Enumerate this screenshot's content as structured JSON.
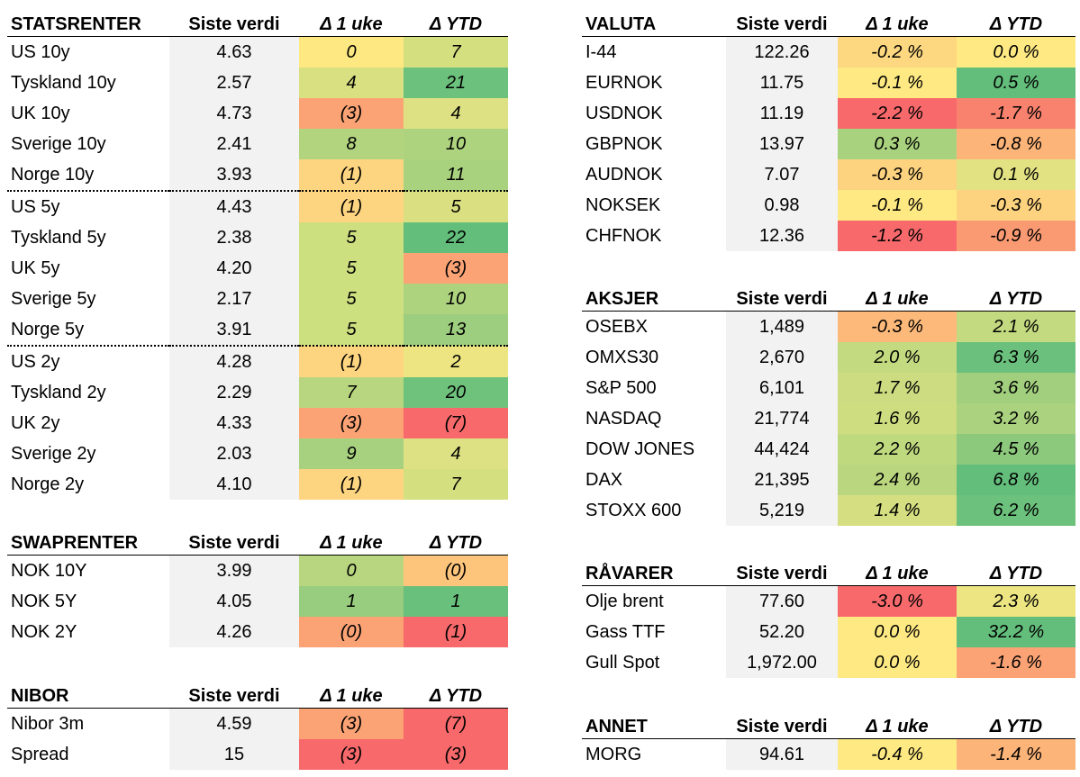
{
  "tables": [
    {
      "id": "statsrenter",
      "title": "STATSRENTER",
      "col_value": "Siste verdi",
      "col_week": "Δ 1 uke",
      "col_ytd": "Δ YTD",
      "rows": [
        {
          "name": "US 10y",
          "value": "4.63",
          "week": "0",
          "ytd": "7",
          "week_color": "#fde882",
          "ytd_color": "#d4df80"
        },
        {
          "name": "Tyskland 10y",
          "value": "2.57",
          "week": "4",
          "ytd": "21",
          "week_color": "#d9e081",
          "ytd_color": "#6cc17d"
        },
        {
          "name": "UK 10y",
          "value": "4.73",
          "week": "(3)",
          "ytd": "4",
          "week_color": "#fba375",
          "ytd_color": "#dde183"
        },
        {
          "name": "Sverige 10y",
          "value": "2.41",
          "week": "8",
          "ytd": "10",
          "week_color": "#b2d47f",
          "ytd_color": "#aed37f"
        },
        {
          "name": "Norge 10y",
          "value": "3.93",
          "week": "(1)",
          "ytd": "11",
          "week_color": "#fdd47f",
          "ytd_color": "#a9d27f",
          "sep_after": true
        },
        {
          "name": "US 5y",
          "value": "4.43",
          "week": "(1)",
          "ytd": "5",
          "week_color": "#fdd47f",
          "ytd_color": "#dae081"
        },
        {
          "name": "Tyskland 5y",
          "value": "2.38",
          "week": "5",
          "ytd": "22",
          "week_color": "#cde080",
          "ytd_color": "#63be7b"
        },
        {
          "name": "UK 5y",
          "value": "4.20",
          "week": "5",
          "ytd": "(3)",
          "week_color": "#cde080",
          "ytd_color": "#fba375"
        },
        {
          "name": "Sverige 5y",
          "value": "2.17",
          "week": "5",
          "ytd": "10",
          "week_color": "#cde080",
          "ytd_color": "#aed37f"
        },
        {
          "name": "Norge 5y",
          "value": "3.91",
          "week": "5",
          "ytd": "13",
          "week_color": "#cde080",
          "ytd_color": "#9dcd7e",
          "sep_after": true
        },
        {
          "name": "US 2y",
          "value": "4.28",
          "week": "(1)",
          "ytd": "2",
          "week_color": "#fdd47f",
          "ytd_color": "#ece582"
        },
        {
          "name": "Tyskland 2y",
          "value": "2.29",
          "week": "7",
          "ytd": "20",
          "week_color": "#b8d67f",
          "ytd_color": "#6fc27c"
        },
        {
          "name": "UK 2y",
          "value": "4.33",
          "week": "(3)",
          "ytd": "(7)",
          "week_color": "#fba375",
          "ytd_color": "#f8696b"
        },
        {
          "name": "Sverige 2y",
          "value": "2.03",
          "week": "9",
          "ytd": "4",
          "week_color": "#a8d17f",
          "ytd_color": "#dde183"
        },
        {
          "name": "Norge 2y",
          "value": "4.10",
          "week": "(1)",
          "ytd": "7",
          "week_color": "#fdd47f",
          "ytd_color": "#d4df80"
        }
      ]
    },
    {
      "id": "swaprenter",
      "title": "SWAPRENTER",
      "col_value": "Siste verdi",
      "col_week": "Δ 1 uke",
      "col_ytd": "Δ YTD",
      "rows": [
        {
          "name": "NOK 10Y",
          "value": "3.99",
          "week": "0",
          "ytd": "(0)",
          "week_color": "#b8d67f",
          "ytd_color": "#fdc57c"
        },
        {
          "name": "NOK 5Y",
          "value": "4.05",
          "week": "1",
          "ytd": "1",
          "week_color": "#98cc7e",
          "ytd_color": "#69c07c"
        },
        {
          "name": "NOK 2Y",
          "value": "4.26",
          "week": "(0)",
          "ytd": "(1)",
          "week_color": "#fba375",
          "ytd_color": "#f8696b"
        }
      ]
    },
    {
      "id": "nibor",
      "title": "NIBOR",
      "col_value": "Siste verdi",
      "col_week": "Δ 1 uke",
      "col_ytd": "Δ YTD",
      "rows": [
        {
          "name": "Nibor 3m",
          "value": "4.59",
          "week": "(3)",
          "ytd": "(7)",
          "week_color": "#fba375",
          "ytd_color": "#f8696b"
        },
        {
          "name": "Spread",
          "value": "15",
          "week": "(3)",
          "ytd": "(3)",
          "week_color": "#f8696b",
          "ytd_color": "#f8696b"
        }
      ]
    },
    {
      "id": "valuta",
      "title": "VALUTA",
      "col_value": "Siste verdi",
      "col_week": "Δ 1 uke",
      "col_ytd": "Δ YTD",
      "rows": [
        {
          "name": "I-44",
          "value": "122.26",
          "week": "-0.2 %",
          "ytd": "0.0 %",
          "week_color": "#fdd880",
          "ytd_color": "#fee983"
        },
        {
          "name": "EURNOK",
          "value": "11.75",
          "week": "-0.1 %",
          "ytd": "0.5 %",
          "week_color": "#fee983",
          "ytd_color": "#63be7b"
        },
        {
          "name": "USDNOK",
          "value": "11.19",
          "week": "-2.2 %",
          "ytd": "-1.7 %",
          "week_color": "#f8696b",
          "ytd_color": "#f8826e"
        },
        {
          "name": "GBPNOK",
          "value": "13.97",
          "week": "0.3 %",
          "ytd": "-0.8 %",
          "week_color": "#a9d27f",
          "ytd_color": "#fcb479"
        },
        {
          "name": "AUDNOK",
          "value": "7.07",
          "week": "-0.3 %",
          "ytd": "0.1 %",
          "week_color": "#fdd37f",
          "ytd_color": "#e2e283"
        },
        {
          "name": "NOKSEK",
          "value": "0.98",
          "week": "-0.1 %",
          "ytd": "-0.3 %",
          "week_color": "#fee983",
          "ytd_color": "#fdd37f"
        },
        {
          "name": "CHFNOK",
          "value": "12.36",
          "week": "-1.2 %",
          "ytd": "-0.9 %",
          "week_color": "#f8696b",
          "ytd_color": "#fa9a73"
        }
      ]
    },
    {
      "id": "aksjer",
      "title": "AKSJER",
      "col_value": "Siste verdi",
      "col_week": "Δ 1 uke",
      "col_ytd": "Δ YTD",
      "rows": [
        {
          "name": "OSEBX",
          "value": "1,489",
          "week": "-0.3 %",
          "ytd": "2.1 %",
          "week_color": "#fcb97a",
          "ytd_color": "#c4da80"
        },
        {
          "name": "OMXS30",
          "value": "2,670",
          "week": "2.0 %",
          "ytd": "6.3 %",
          "week_color": "#c4da80",
          "ytd_color": "#6ac07c"
        },
        {
          "name": "S&P 500",
          "value": "6,101",
          "week": "1.7 %",
          "ytd": "3.6 %",
          "week_color": "#cddc81",
          "ytd_color": "#a1cf7e"
        },
        {
          "name": "NASDAQ",
          "value": "21,774",
          "week": "1.6 %",
          "ytd": "3.2 %",
          "week_color": "#cfdd81",
          "ytd_color": "#aad27f"
        },
        {
          "name": "DOW JONES",
          "value": "44,424",
          "week": "2.2 %",
          "ytd": "4.5 %",
          "week_color": "#bfd97f",
          "ytd_color": "#8dc97d"
        },
        {
          "name": "DAX",
          "value": "21,395",
          "week": "2.4 %",
          "ytd": "6.8 %",
          "week_color": "#bad77f",
          "ytd_color": "#63be7b"
        },
        {
          "name": "STOXX 600",
          "value": "5,219",
          "week": "1.4 %",
          "ytd": "6.2 %",
          "week_color": "#d5df81",
          "ytd_color": "#6cc17c"
        }
      ]
    },
    {
      "id": "ravarer",
      "title": "RÅVARER",
      "col_value": "Siste verdi",
      "col_week": "Δ 1 uke",
      "col_ytd": "Δ YTD",
      "rows": [
        {
          "name": "Olje brent",
          "value": "77.60",
          "week": "-3.0 %",
          "ytd": "2.3 %",
          "week_color": "#f8696b",
          "ytd_color": "#ece582"
        },
        {
          "name": "Gass TTF",
          "value": "52.20",
          "week": "0.0 %",
          "ytd": "32.2 %",
          "week_color": "#fee983",
          "ytd_color": "#63be7b"
        },
        {
          "name": "Gull Spot",
          "value": "1,972.00",
          "week": "0.0 %",
          "ytd": "-1.6 %",
          "week_color": "#fee983",
          "ytd_color": "#fba375"
        }
      ]
    },
    {
      "id": "annet",
      "title": "ANNET",
      "col_value": "Siste verdi",
      "col_week": "Δ 1 uke",
      "col_ytd": "Δ YTD",
      "rows": [
        {
          "name": "MORG",
          "value": "94.61",
          "week": "-0.4 %",
          "ytd": "-1.4 %",
          "week_color": "#fee983",
          "ytd_color": "#fcb479"
        }
      ]
    }
  ]
}
